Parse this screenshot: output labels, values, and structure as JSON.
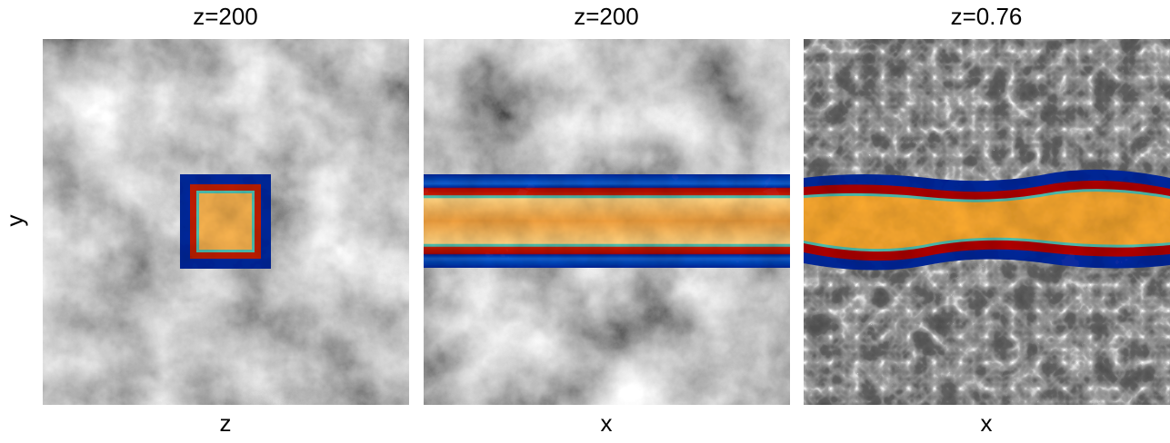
{
  "ylabel": "y",
  "panels": [
    {
      "title": "z=200",
      "xlabel": "z"
    },
    {
      "title": "z=200",
      "xlabel": "x"
    },
    {
      "title": "z=0.76",
      "xlabel": "x"
    }
  ]
}
